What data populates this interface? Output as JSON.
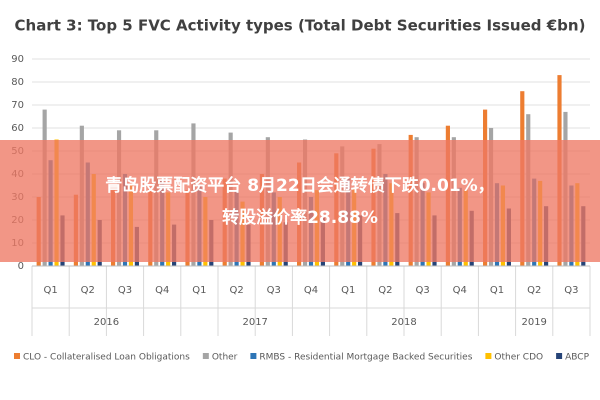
{
  "chart_data": {
    "type": "bar",
    "title": "Chart 3: Top 5 FVC Activity types (Total Debt Securities Issued €bn)",
    "categories": [
      "Q1",
      "Q2",
      "Q3",
      "Q4",
      "Q1",
      "Q2",
      "Q3",
      "Q4",
      "Q1",
      "Q2",
      "Q3",
      "Q4",
      "Q1",
      "Q2",
      "Q3"
    ],
    "x_groups": [
      "2016",
      "2017",
      "2018",
      "2019"
    ],
    "series": [
      {
        "name": "CLO - Collateralised Loan Obligations",
        "color": "#ed7d31",
        "values": [
          30,
          31,
          33,
          34,
          33,
          38,
          40,
          45,
          49,
          51,
          57,
          61,
          68,
          76,
          83
        ]
      },
      {
        "name": "Other",
        "color": "#a5a5a5",
        "values": [
          68,
          61,
          59,
          59,
          62,
          58,
          56,
          55,
          52,
          53,
          56,
          56,
          60,
          66,
          67
        ]
      },
      {
        "name": "RMBS - Residential Mortgage Backed Securities",
        "color": "#2e75b6",
        "values": [
          46,
          45,
          40,
          37,
          35,
          33,
          32,
          30,
          38,
          40,
          36,
          34,
          36,
          38,
          35
        ]
      },
      {
        "name": "Other CDO",
        "color": "#ffc000",
        "values": [
          55,
          40,
          35,
          32,
          30,
          28,
          30,
          33,
          34,
          36,
          32,
          33,
          35,
          37,
          36
        ]
      },
      {
        "name": "ABCP",
        "color": "#264478",
        "values": [
          22,
          20,
          17,
          18,
          20,
          18,
          19,
          21,
          22,
          23,
          22,
          24,
          25,
          26,
          26
        ]
      }
    ],
    "ylim": [
      0,
      90
    ],
    "yticks": [
      0,
      10,
      20,
      30,
      40,
      50,
      60,
      70,
      80,
      90
    ],
    "grid": true
  },
  "banner": {
    "lines": [
      "青岛股票配资平台 8月22日会通转债下跌0.01%，",
      "转股溢价率28.88%"
    ]
  }
}
